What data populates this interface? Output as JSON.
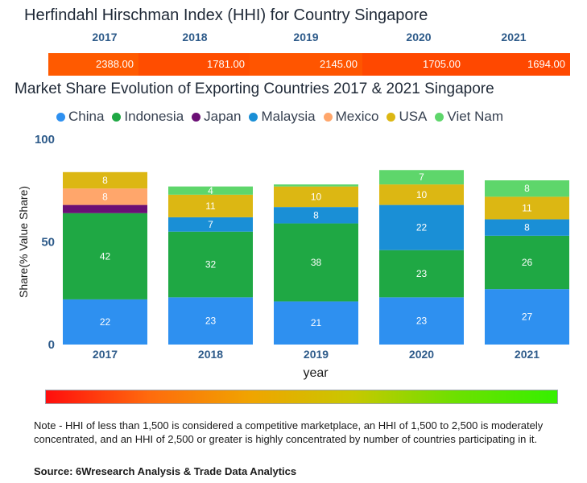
{
  "hhi": {
    "title": "Herfindahl Hirschman Index (HHI) for Country Singapore",
    "years": [
      "2017",
      "2018",
      "2019",
      "2020",
      "2021"
    ],
    "values": [
      "2388.00",
      "1781.00",
      "2145.00",
      "1705.00",
      "1694.00"
    ],
    "colors": [
      "#ff5a00",
      "#ff4d00",
      "#ff5500",
      "#ff4800",
      "#ff4800"
    ]
  },
  "chart_data": {
    "type": "bar",
    "stacked": true,
    "title": "Market Share Evolution of Exporting Countries 2017 & 2021 Singapore",
    "xlabel": "year",
    "ylabel": "Share(% Value Share)",
    "ylim": [
      0,
      100
    ],
    "yticks": [
      0,
      50,
      100
    ],
    "categories": [
      "2017",
      "2018",
      "2019",
      "2020",
      "2021"
    ],
    "series": [
      {
        "name": "China",
        "color": "#2e90f0",
        "values": [
          22,
          23,
          21,
          23,
          27
        ]
      },
      {
        "name": "Indonesia",
        "color": "#1fa844",
        "values": [
          42,
          32,
          38,
          23,
          26
        ]
      },
      {
        "name": "Japan",
        "color": "#6b0f75",
        "values": [
          4,
          0,
          0,
          0,
          0
        ]
      },
      {
        "name": "Malaysia",
        "color": "#1a8fd6",
        "values": [
          0,
          7,
          8,
          22,
          8
        ]
      },
      {
        "name": "Mexico",
        "color": "#ffa66b",
        "values": [
          8,
          0,
          0,
          0,
          0
        ]
      },
      {
        "name": "USA",
        "color": "#dcb713",
        "values": [
          8,
          11,
          10,
          10,
          11
        ]
      },
      {
        "name": "Viet Nam",
        "color": "#5ed66b",
        "values": [
          0,
          4,
          1,
          7,
          8
        ]
      }
    ],
    "labels": [
      [
        "22",
        "23",
        "21",
        "23",
        "27"
      ],
      [
        "42",
        "32",
        "38",
        "23",
        "26"
      ],
      [
        "",
        "",
        "",
        "",
        ""
      ],
      [
        "",
        "7",
        "8",
        "22",
        "8"
      ],
      [
        "8",
        "",
        "",
        "",
        ""
      ],
      [
        "8",
        "11",
        "10",
        "10",
        "11"
      ],
      [
        "",
        "4",
        "",
        "7",
        "8"
      ]
    ]
  },
  "note": "Note - HHI of less than 1,500 is considered a competitive marketplace, an HHI of 1,500 to 2,500 is moderately concentrated, and an HHI of 2,500 or greater is highly concentrated by number of countries participating in it.",
  "source": "Source: 6Wresearch Analysis & Trade Data Analytics"
}
